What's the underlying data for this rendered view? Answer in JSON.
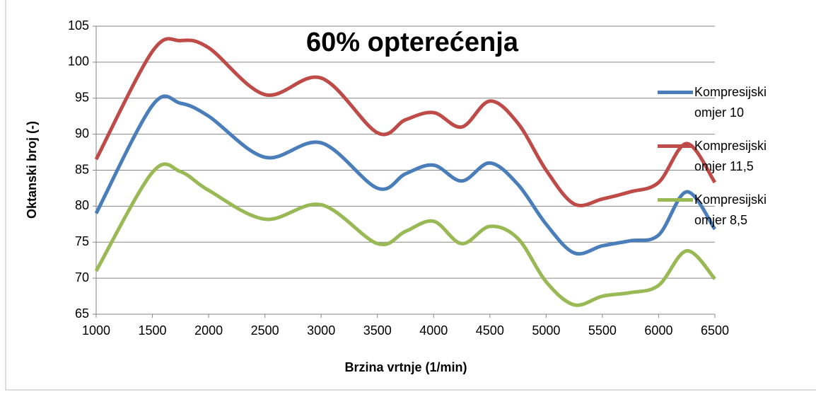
{
  "chart_data": {
    "type": "line",
    "title": "60% opterećenja",
    "x_label": "Brzina vrtnje (1/min)",
    "y_label": "Oktanski broj (-)",
    "x": [
      1000,
      1500,
      1750,
      2000,
      2500,
      3000,
      3500,
      3750,
      4000,
      4250,
      4500,
      4750,
      5000,
      5250,
      5500,
      5750,
      6000,
      6250,
      6500
    ],
    "series": [
      {
        "name": "Kompresijski omjer 10",
        "color": "#4a7ebb",
        "values": [
          79,
          94,
          94.3,
          92.5,
          86.8,
          88.8,
          82.5,
          84.5,
          85.7,
          83.5,
          86,
          83,
          77.5,
          73.5,
          74.5,
          75.2,
          76,
          82,
          76.8
        ]
      },
      {
        "name": "Kompresijski omjer 11,5",
        "color": "#be4b48",
        "values": [
          86.5,
          101.5,
          103,
          102,
          95.5,
          97.8,
          90.2,
          92,
          93,
          91,
          94.6,
          91.5,
          85,
          80.3,
          81,
          82,
          83.3,
          88.7,
          83.3
        ]
      },
      {
        "name": "Kompresijski omjer 8,5",
        "color": "#98b954",
        "values": [
          71,
          84.7,
          84.8,
          82.2,
          78.2,
          80.2,
          74.8,
          76.5,
          77.9,
          74.8,
          77.2,
          75.5,
          69.5,
          66.3,
          67.5,
          68,
          69,
          73.8,
          69.9
        ]
      }
    ],
    "xlim": [
      1000,
      6500
    ],
    "xticks": [
      1000,
      1500,
      2000,
      2500,
      3000,
      3500,
      4000,
      4500,
      5000,
      5500,
      6000,
      6500
    ],
    "ylim": [
      65,
      105
    ],
    "yticks": [
      65,
      70,
      75,
      80,
      85,
      90,
      95,
      100,
      105
    ],
    "grid": true,
    "legend": "right"
  }
}
